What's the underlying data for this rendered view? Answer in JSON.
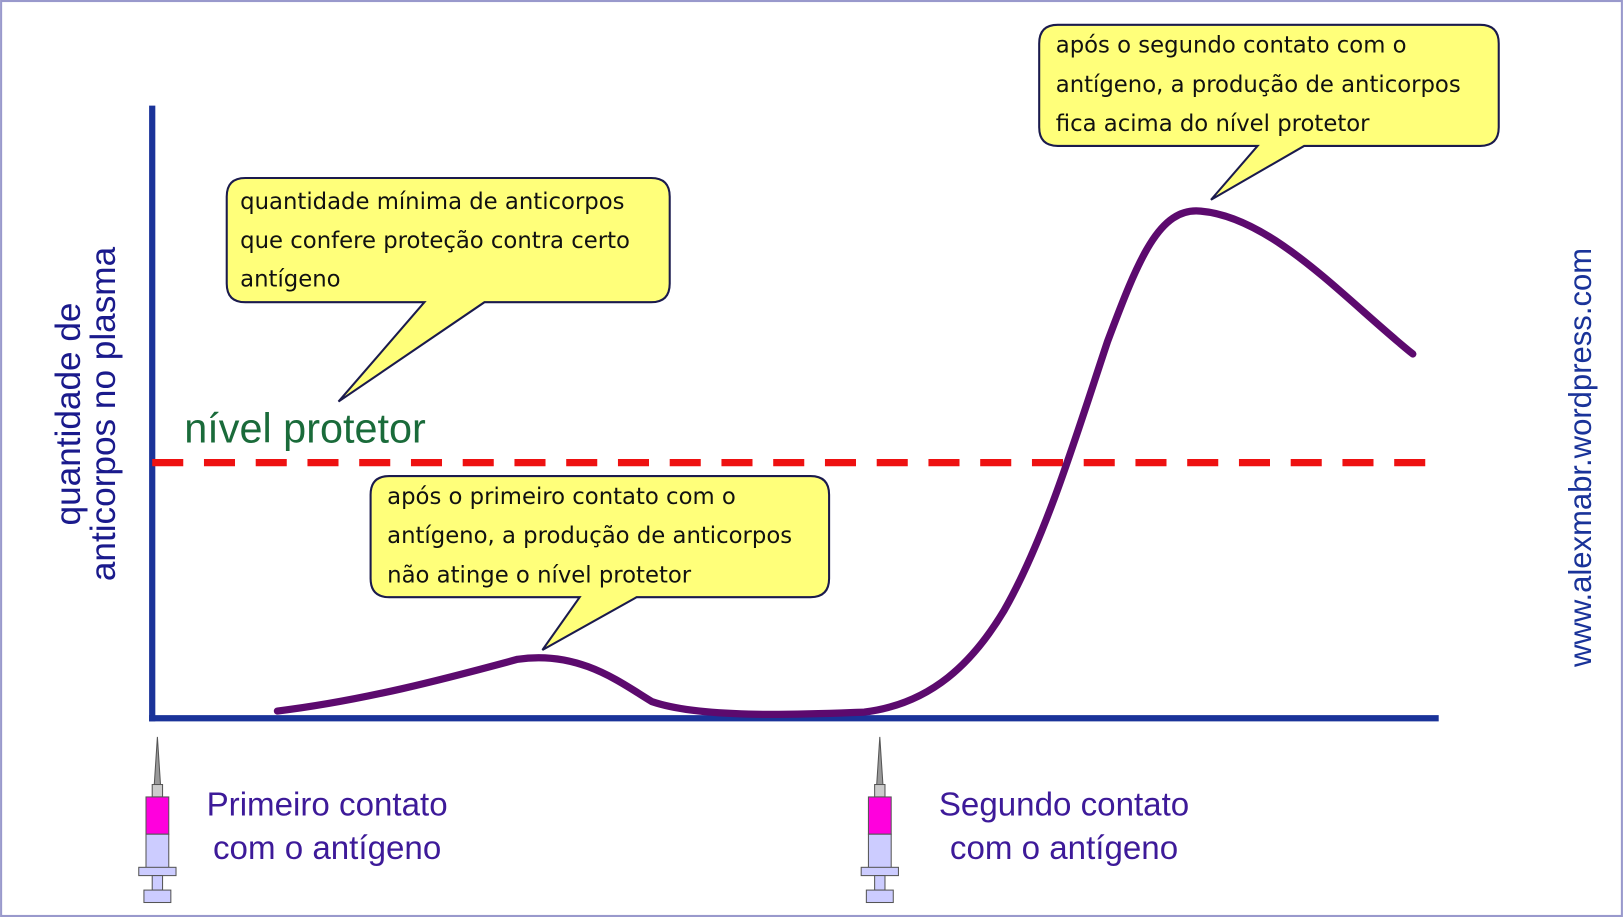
{
  "axis_label": [
    "quantidade de",
    "anticorpos no plasma"
  ],
  "protective_level_label": "nível protetor",
  "callouts": [
    {
      "lines": [
        "quantidade mínima de anticorpos",
        "que confere proteção contra certo",
        "antígeno"
      ]
    },
    {
      "lines": [
        "após o primeiro contato com o",
        "antígeno, a produção de anticorpos",
        "não atinge o nível protetor"
      ]
    },
    {
      "lines": [
        "após o segundo contato com o",
        "antígeno, a produção de anticorpos",
        "fica acima do nível protetor"
      ]
    }
  ],
  "events": [
    {
      "lines": [
        "Primeiro contato",
        "com o antígeno"
      ]
    },
    {
      "lines": [
        "Segundo contato",
        "com o antígeno"
      ]
    }
  ],
  "watermark": "www.alexmabr.wordpress.com"
}
